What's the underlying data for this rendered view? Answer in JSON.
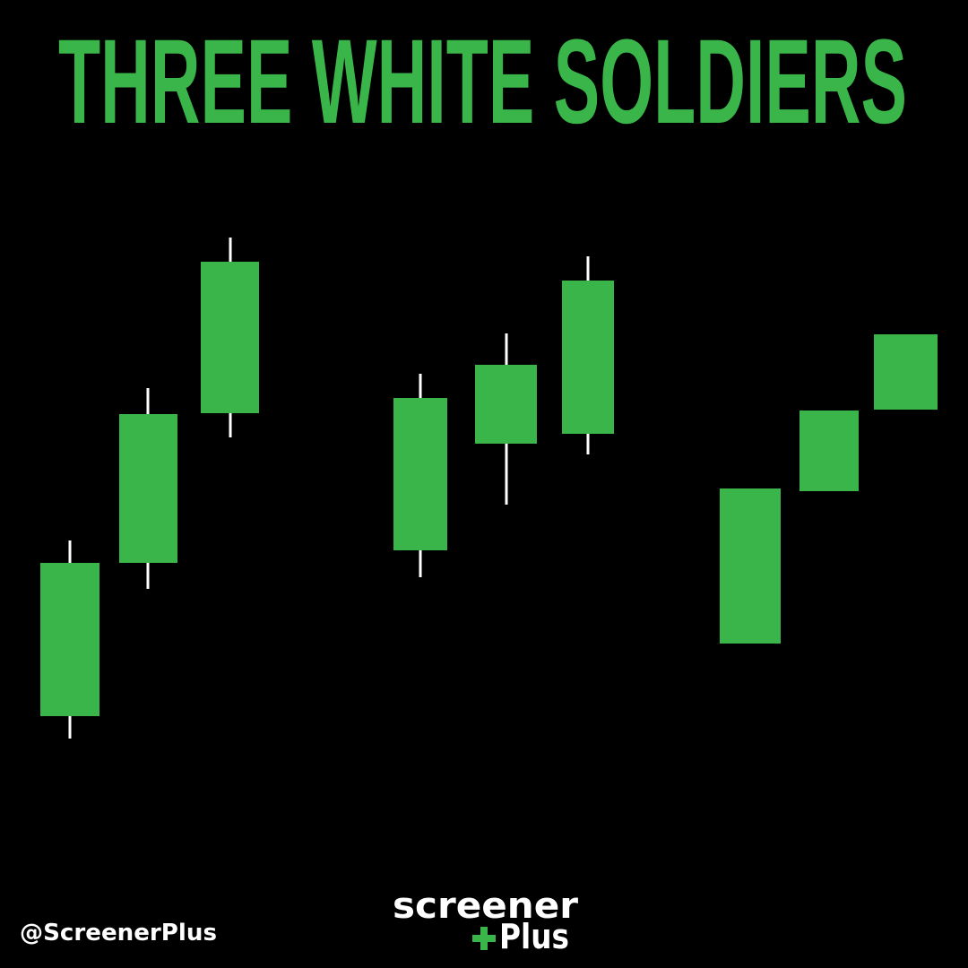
{
  "header": {
    "title": "THREE WHITE SOLDIERS"
  },
  "footer": {
    "handle": "@ScreenerPlus",
    "logo": {
      "line1": "screener",
      "line2": "Plus"
    }
  }
}
